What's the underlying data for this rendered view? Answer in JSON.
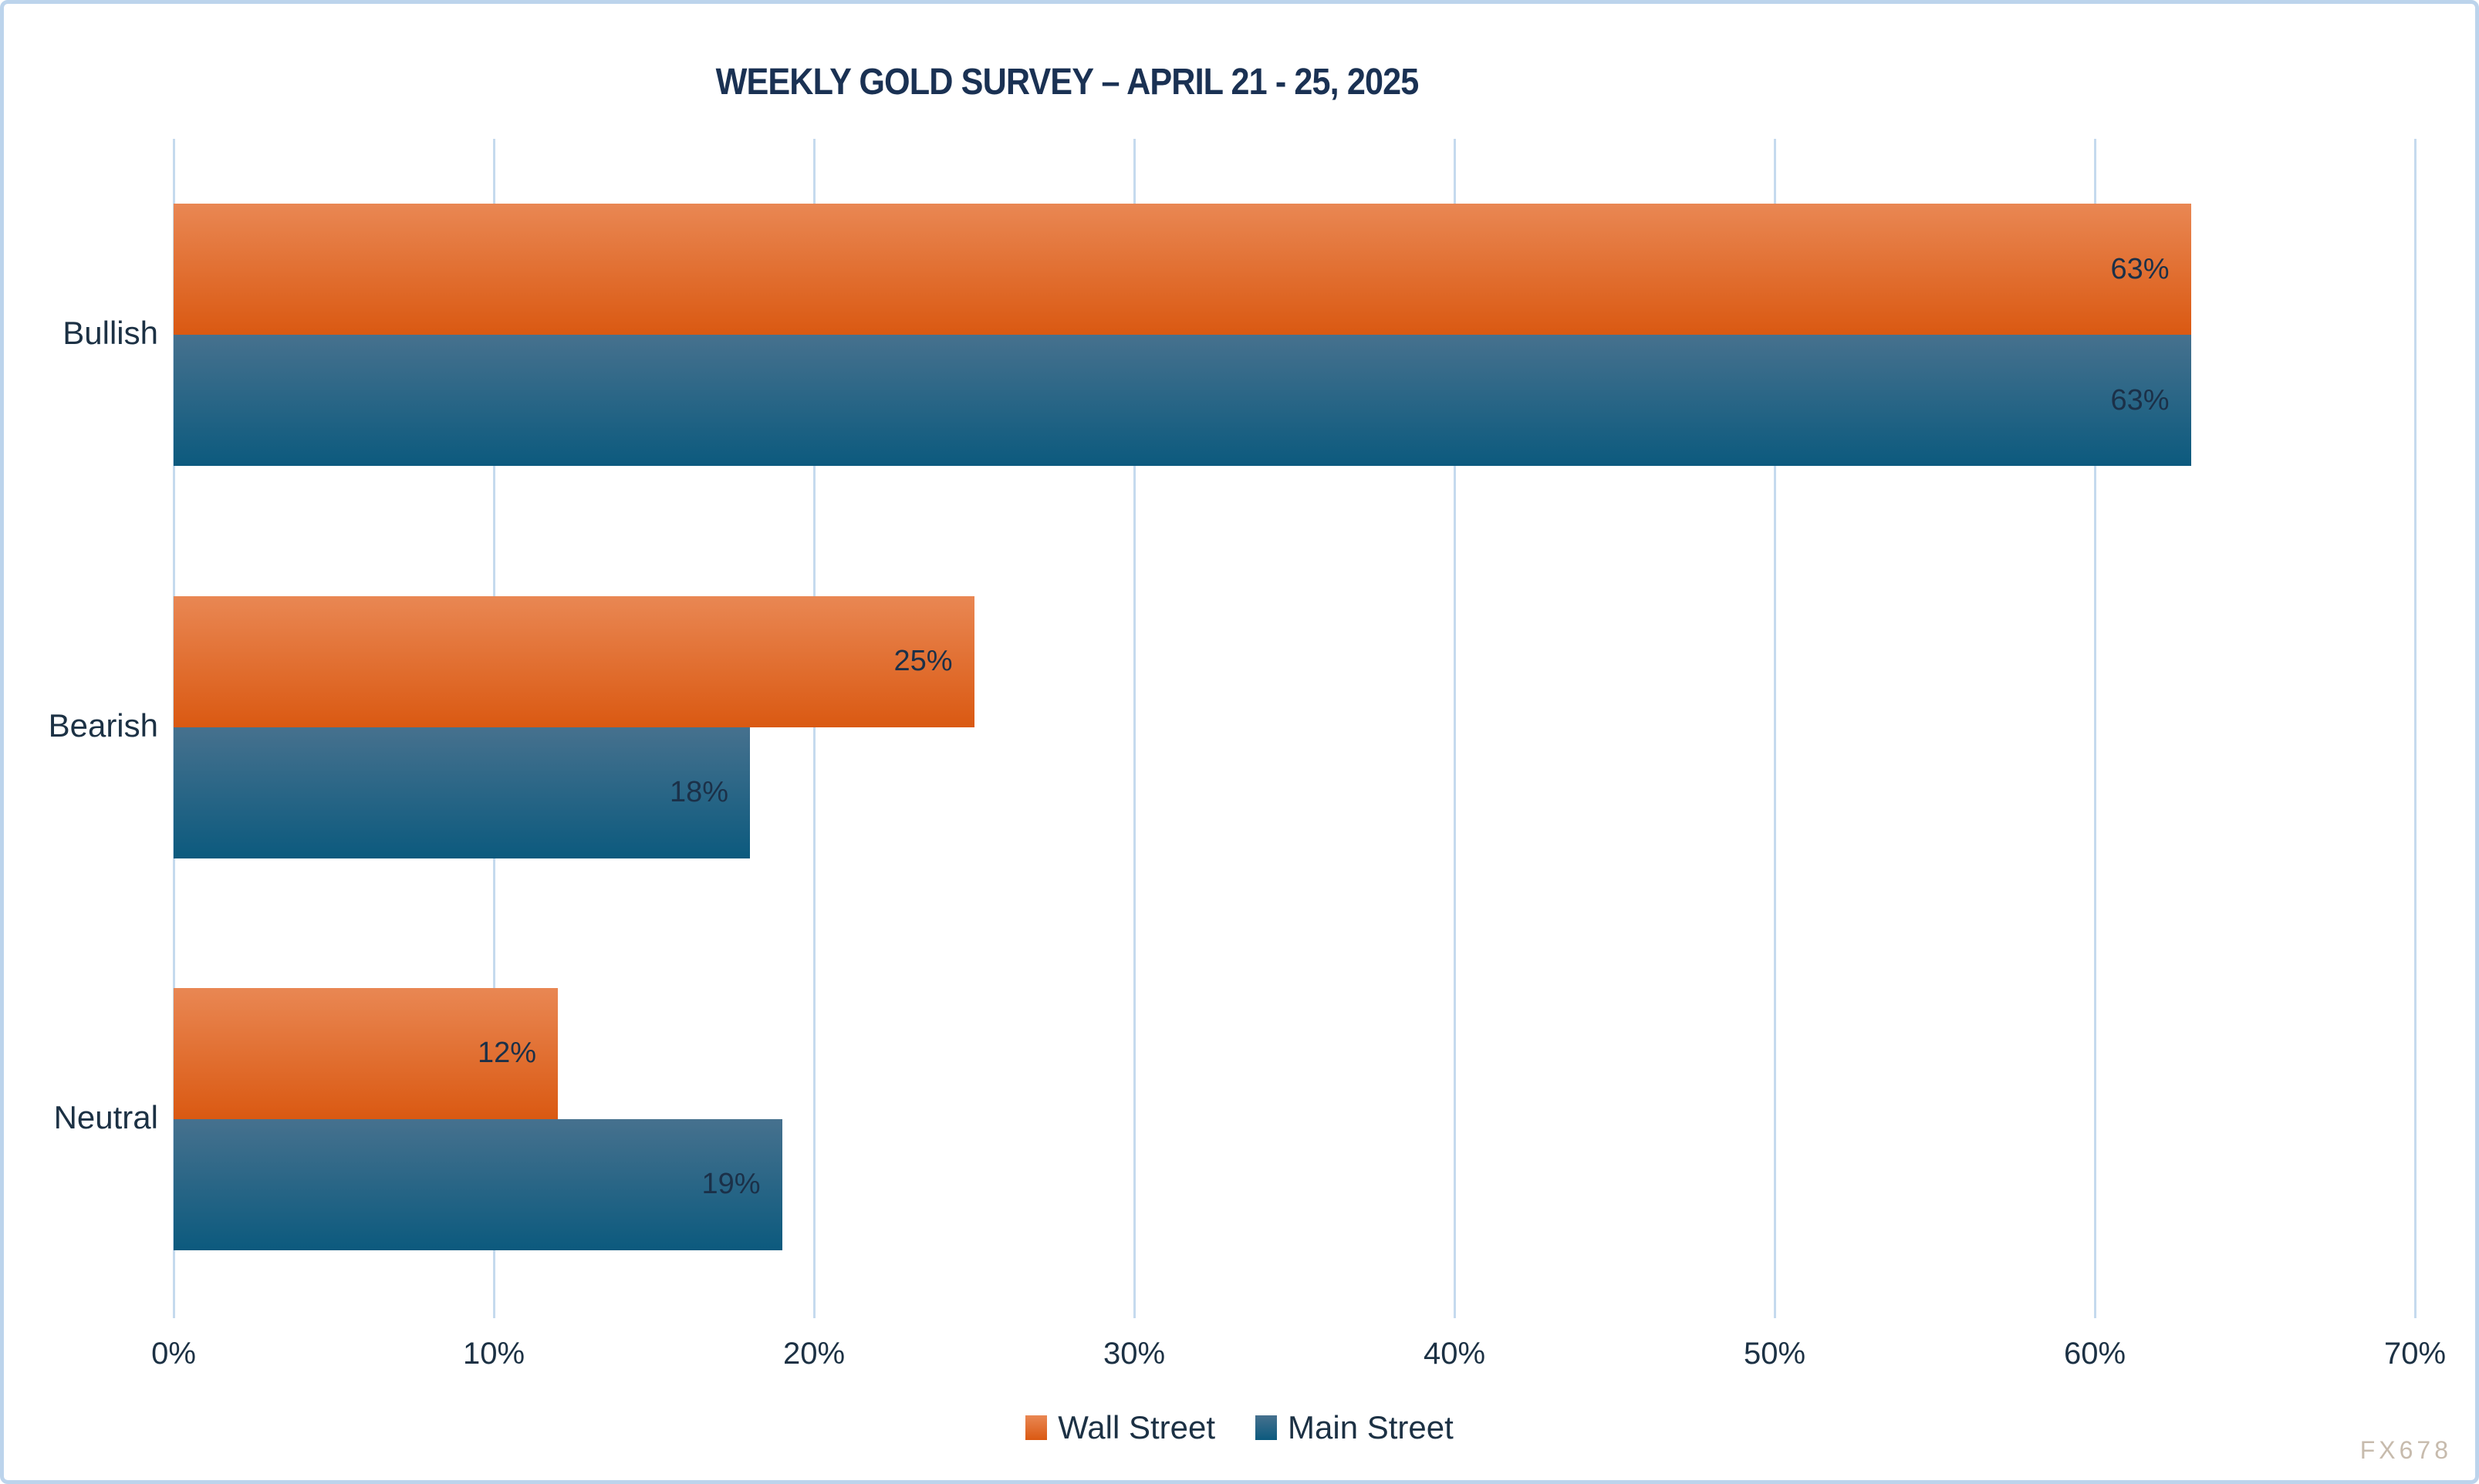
{
  "title": "WEEKLY GOLD SURVEY – APRIL 21 - 25, 2025",
  "watermark": "FX678",
  "chart_data": {
    "type": "bar",
    "orientation": "horizontal",
    "title": "WEEKLY GOLD SURVEY – APRIL 21 - 25, 2025",
    "categories": [
      "Bullish",
      "Bearish",
      "Neutral"
    ],
    "series": [
      {
        "name": "Wall Street",
        "values": [
          63,
          25,
          12
        ],
        "color_top": "#E98753",
        "color_bottom": "#DA5912"
      },
      {
        "name": "Main Street",
        "values": [
          63,
          18,
          19
        ],
        "color_top": "#46718E",
        "color_bottom": "#0C5A7E"
      }
    ],
    "value_suffix": "%",
    "data_labels": [
      "63%",
      "63%",
      "25%",
      "18%",
      "12%",
      "19%"
    ],
    "xlabel": "",
    "ylabel": "",
    "xlim": [
      0,
      70
    ],
    "x_ticks": [
      "0%",
      "10%",
      "20%",
      "30%",
      "40%",
      "50%",
      "60%",
      "70%"
    ],
    "grid": true,
    "legend_position": "bottom"
  },
  "colors": {
    "background": "#FFFFFF",
    "border": "#BCD4EC",
    "grid": "#C5DAEE",
    "title_text": "#1A3153",
    "axis_text": "#1C3144",
    "data_label_text": "#1B3048",
    "watermark_text": "#C7BBAD"
  }
}
